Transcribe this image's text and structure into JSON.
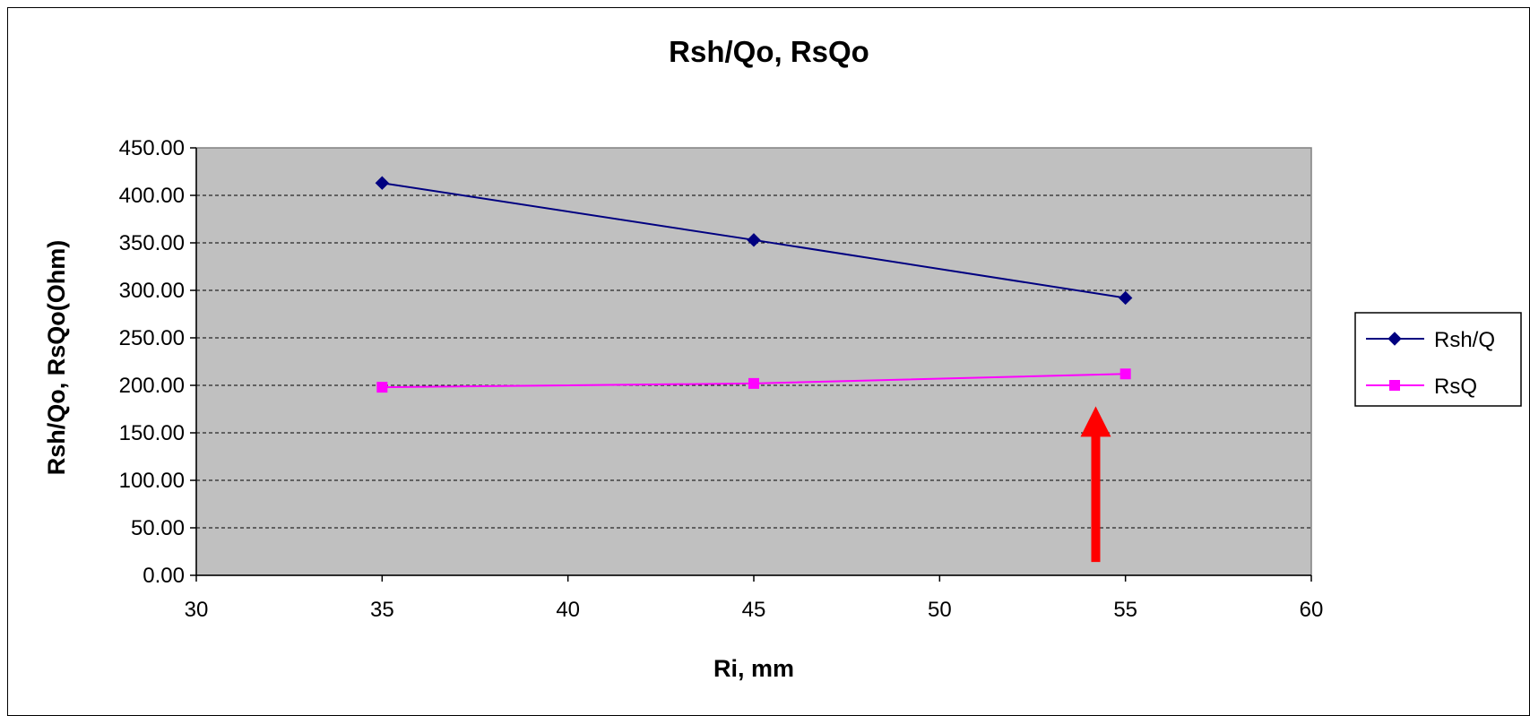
{
  "chart_data": {
    "type": "line",
    "title": "Rsh/Qo, RsQo",
    "xlabel": "Ri, mm",
    "ylabel": "Rsh/Qo, RsQo(Ohm)",
    "xlim": [
      30,
      60
    ],
    "ylim": [
      0,
      450
    ],
    "xticks": [
      30,
      35,
      40,
      45,
      50,
      55,
      60
    ],
    "xtick_labels": [
      "30",
      "35",
      "40",
      "45",
      "50",
      "55",
      "60"
    ],
    "yticks": [
      0,
      50,
      100,
      150,
      200,
      250,
      300,
      350,
      400,
      450
    ],
    "ytick_labels": [
      "0.00",
      "50.00",
      "100.00",
      "150.00",
      "200.00",
      "250.00",
      "300.00",
      "350.00",
      "400.00",
      "450.00"
    ],
    "grid": "horizontal dashed",
    "legend_position": "right",
    "plot_background": "#c0c0c0",
    "series": [
      {
        "name": "Rsh/Q",
        "color": "#000080",
        "marker": "diamond",
        "x": [
          35,
          45,
          55
        ],
        "values": [
          413,
          353,
          292
        ]
      },
      {
        "name": "RsQ",
        "color": "#ff00ff",
        "marker": "square",
        "x": [
          35,
          45,
          55
        ],
        "values": [
          198,
          202,
          212
        ]
      }
    ],
    "annotations": [
      {
        "type": "arrow",
        "color": "#ff0000",
        "direction": "up",
        "x": 54.2,
        "y_from": 14,
        "y_to": 178
      }
    ]
  }
}
